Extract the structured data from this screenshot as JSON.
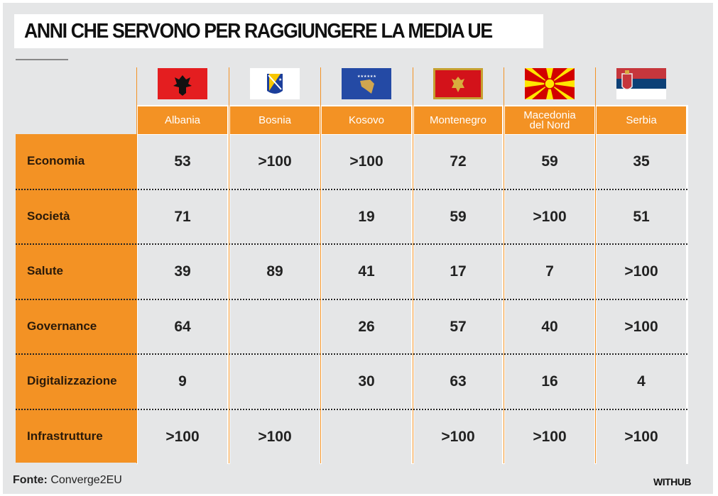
{
  "title": "ANNI CHE SERVONO PER RAGGIUNGERE LA MEDIA UE",
  "chart_data": {
    "type": "table",
    "title": "ANNI CHE SERVONO PER RAGGIUNGERE LA MEDIA UE",
    "columns": [
      "Albania",
      "Bosnia",
      "Kosovo",
      "Montenegro",
      "Macedonia del Nord",
      "Serbia"
    ],
    "column_lines": [
      [
        "Albania"
      ],
      [
        "Bosnia"
      ],
      [
        "Kosovo"
      ],
      [
        "Montenegro"
      ],
      [
        "Macedonia",
        "del Nord"
      ],
      [
        "Serbia"
      ]
    ],
    "rows": [
      {
        "label": "Economia",
        "values": [
          "53",
          ">100",
          ">100",
          "72",
          "59",
          "35"
        ]
      },
      {
        "label": "Società",
        "values": [
          "71",
          "",
          "19",
          "59",
          ">100",
          "51"
        ]
      },
      {
        "label": "Salute",
        "values": [
          "39",
          "89",
          "41",
          "17",
          "7",
          ">100"
        ]
      },
      {
        "label": "Governance",
        "values": [
          "64",
          "",
          "26",
          "57",
          "40",
          ">100"
        ]
      },
      {
        "label": "Digitalizzazione",
        "values": [
          "9",
          "",
          "30",
          "63",
          "16",
          "4"
        ]
      },
      {
        "label": "Infrastrutture",
        "values": [
          ">100",
          ">100",
          "",
          ">100",
          ">100",
          ">100"
        ]
      }
    ]
  },
  "flags": [
    "albania-flag",
    "bosnia-flag",
    "kosovo-flag",
    "montenegro-flag",
    "north-macedonia-flag",
    "serbia-flag"
  ],
  "colors": {
    "accent": "#f39224",
    "background": "#e5e6e7"
  },
  "footer": {
    "source_label": "Fonte:",
    "source": "Converge2EU",
    "brand": "WITHUB"
  }
}
